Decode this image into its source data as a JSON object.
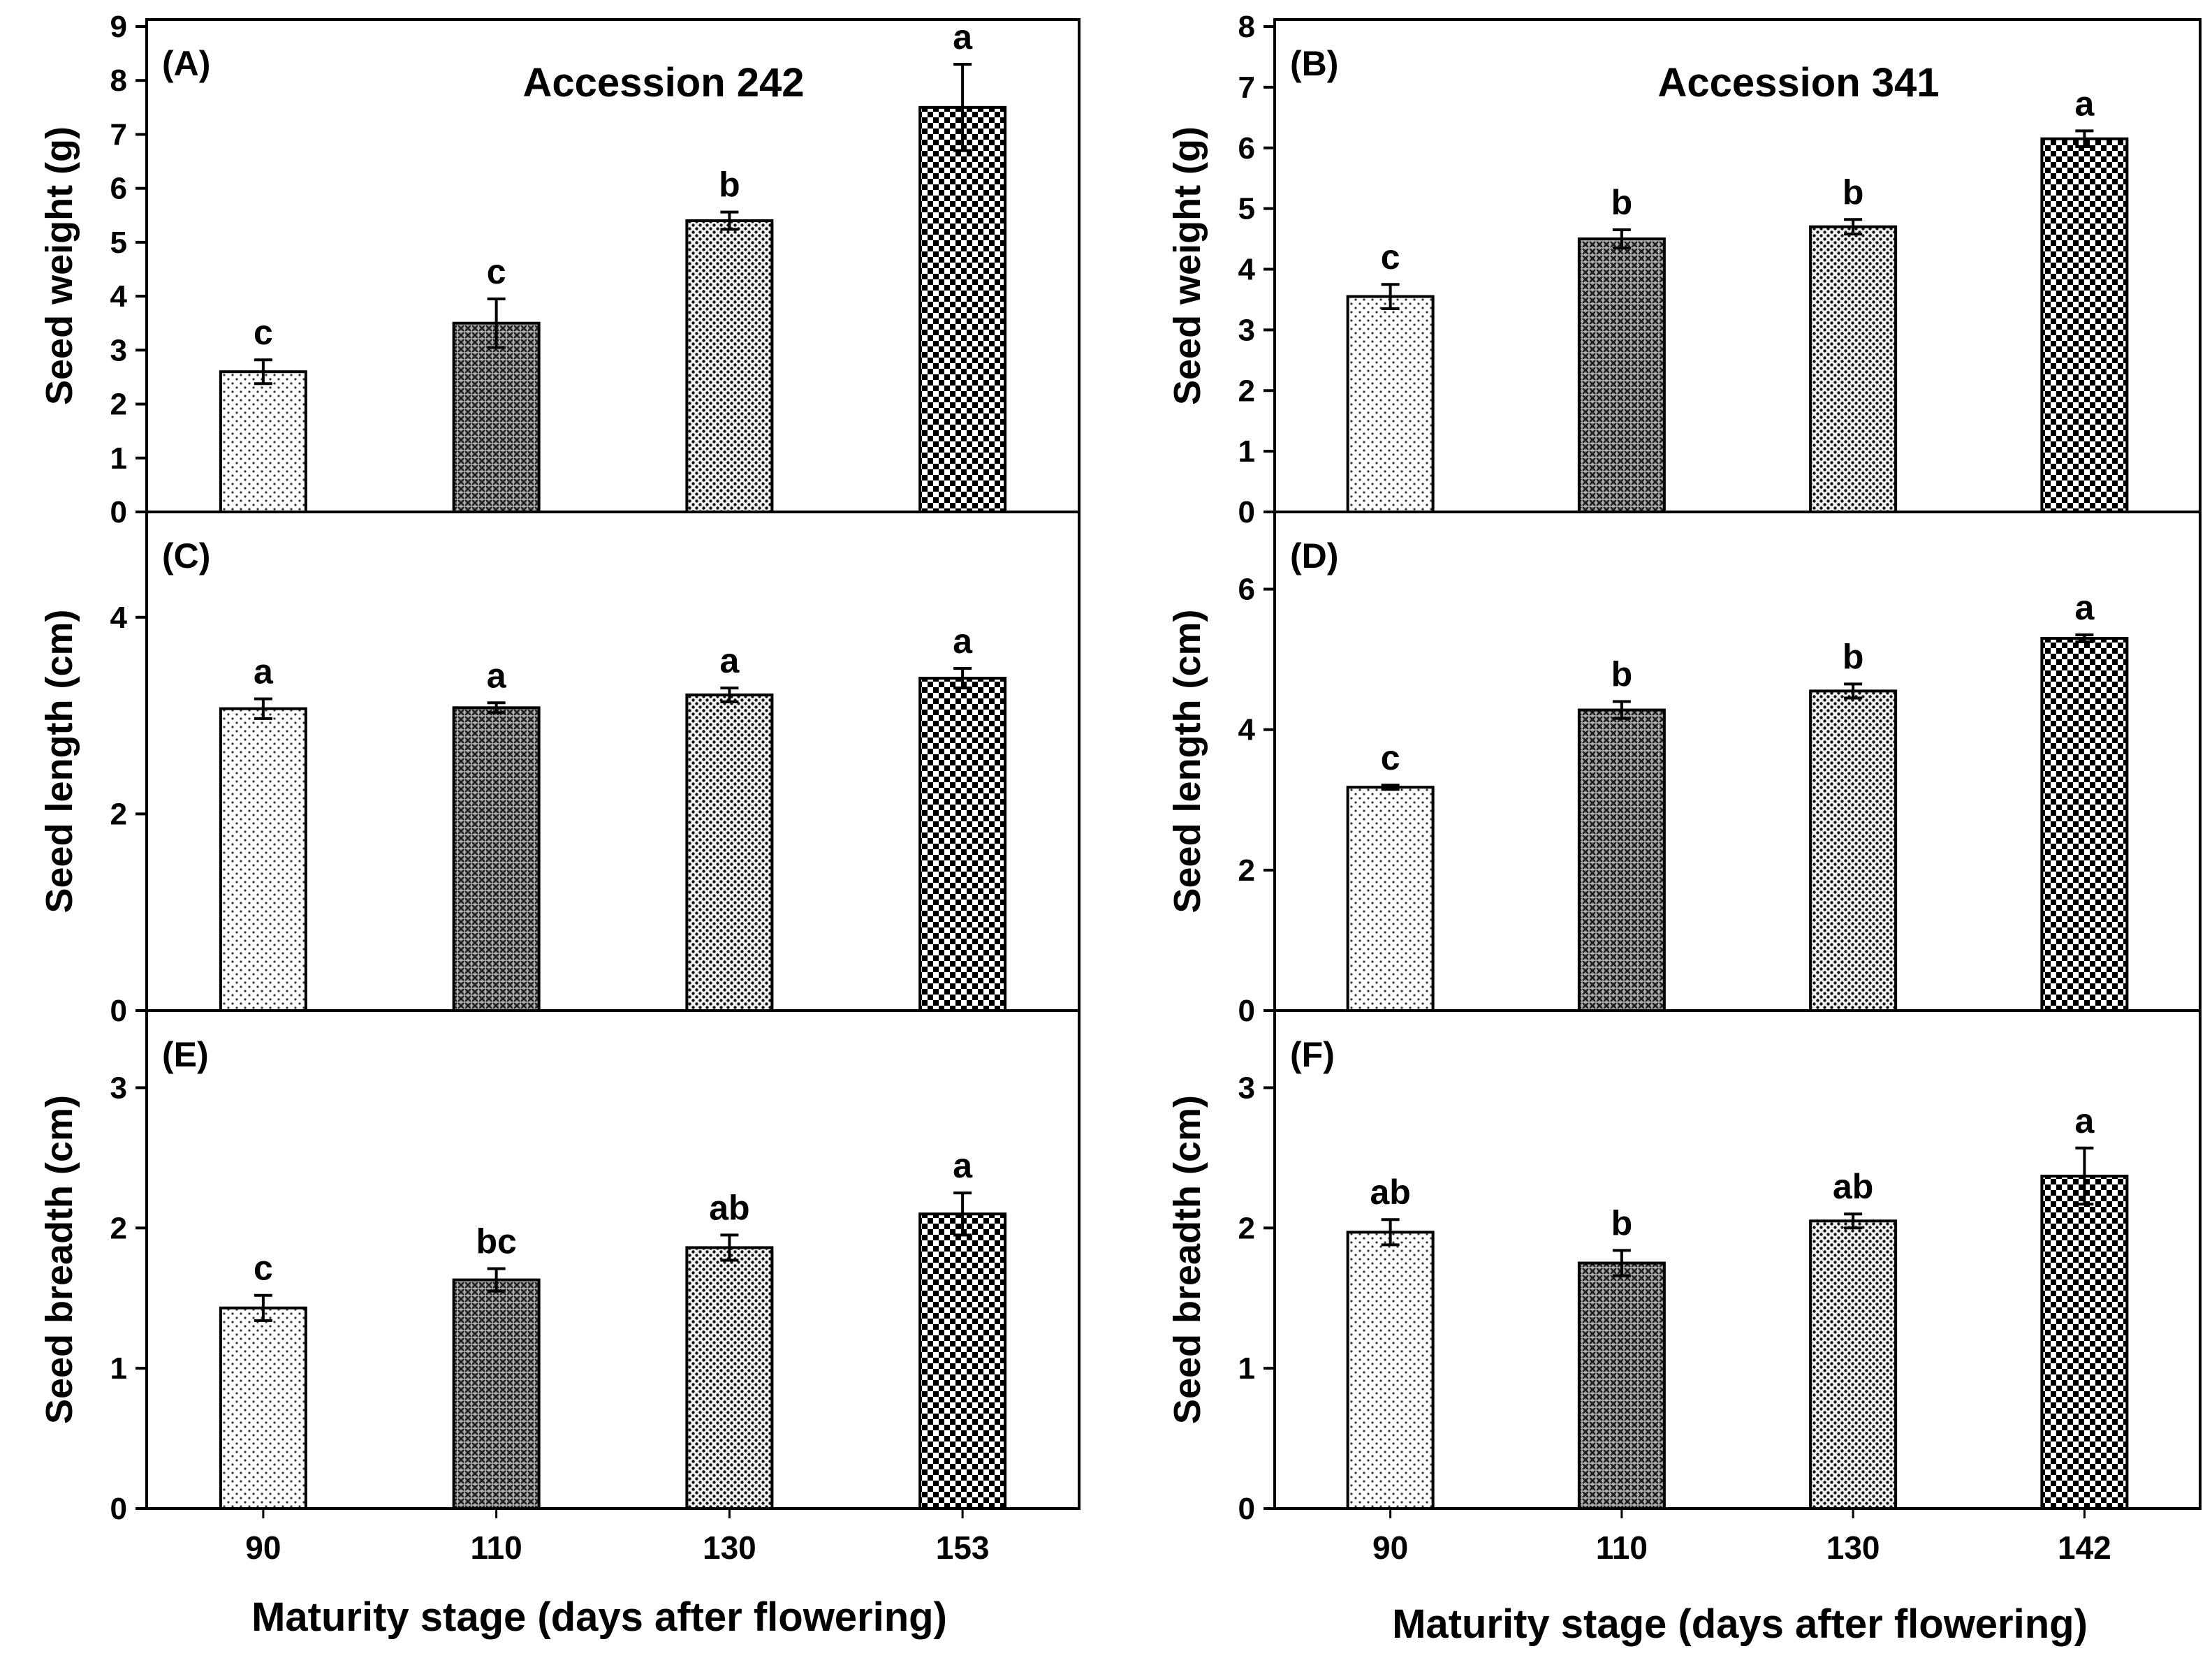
{
  "figure": {
    "xlabel": "Maturity stage (days after flowering)"
  },
  "chart_data": [
    {
      "type": "bar",
      "panel": "(A)",
      "title": "Accession 242",
      "categories": [
        "90",
        "110",
        "130",
        "153"
      ],
      "values": [
        2.6,
        3.5,
        5.4,
        7.5
      ],
      "errors": [
        0.22,
        0.45,
        0.16,
        0.8
      ],
      "letters": [
        "c",
        "c",
        "b",
        "a"
      ],
      "patterns": [
        "dots-light",
        "crosshatch",
        "dots-dense",
        "checker"
      ],
      "xlabel": "Maturity stage (days after flowering)",
      "ylabel": "Seed weight (g)",
      "ylim": [
        0,
        9
      ],
      "yticks": [
        0,
        1,
        2,
        3,
        4,
        5,
        6,
        7,
        8,
        9
      ]
    },
    {
      "type": "bar",
      "panel": "(B)",
      "title": "Accession 341",
      "categories": [
        "90",
        "110",
        "130",
        "142"
      ],
      "values": [
        3.55,
        4.5,
        4.7,
        6.15
      ],
      "errors": [
        0.2,
        0.15,
        0.12,
        0.13
      ],
      "letters": [
        "c",
        "b",
        "b",
        "a"
      ],
      "patterns": [
        "dots-light",
        "crosshatch",
        "dots-dense",
        "checker"
      ],
      "xlabel": "Maturity stage (days after flowering)",
      "ylabel": "Seed weight (g)",
      "ylim": [
        0,
        8
      ],
      "yticks": [
        0,
        1,
        2,
        3,
        4,
        5,
        6,
        7,
        8
      ]
    },
    {
      "type": "bar",
      "panel": "(C)",
      "title": "",
      "categories": [
        "90",
        "110",
        "130",
        "153"
      ],
      "values": [
        3.07,
        3.08,
        3.21,
        3.38
      ],
      "errors": [
        0.1,
        0.05,
        0.07,
        0.1
      ],
      "letters": [
        "a",
        "a",
        "a",
        "a"
      ],
      "patterns": [
        "dots-light",
        "crosshatch",
        "dots-dense",
        "checker"
      ],
      "xlabel": "Maturity stage (days after flowering)",
      "ylabel": "Seed length (cm)",
      "ylim": [
        0,
        5
      ],
      "yticks": [
        0,
        2,
        4
      ]
    },
    {
      "type": "bar",
      "panel": "(D)",
      "title": "",
      "categories": [
        "90",
        "110",
        "130",
        "142"
      ],
      "values": [
        3.18,
        4.28,
        4.55,
        5.3
      ],
      "errors": [
        0.03,
        0.12,
        0.1,
        0.05
      ],
      "letters": [
        "c",
        "b",
        "b",
        "a"
      ],
      "patterns": [
        "dots-light",
        "crosshatch",
        "dots-dense",
        "checker"
      ],
      "xlabel": "Maturity stage (days after flowering)",
      "ylabel": "Seed length (cm)",
      "ylim": [
        0,
        7
      ],
      "yticks": [
        0,
        2,
        4,
        6
      ]
    },
    {
      "type": "bar",
      "panel": "(E)",
      "title": "",
      "categories": [
        "90",
        "110",
        "130",
        "153"
      ],
      "values": [
        1.43,
        1.63,
        1.86,
        2.1
      ],
      "errors": [
        0.09,
        0.08,
        0.09,
        0.15
      ],
      "letters": [
        "c",
        "bc",
        "ab",
        "a"
      ],
      "patterns": [
        "dots-light",
        "crosshatch",
        "dots-dense",
        "checker"
      ],
      "xlabel": "Maturity stage (days after flowering)",
      "ylabel": "Seed breadth (cm)",
      "ylim": [
        0,
        3.5
      ],
      "yticks": [
        0,
        1,
        2,
        3
      ]
    },
    {
      "type": "bar",
      "panel": "(F)",
      "title": "",
      "categories": [
        "90",
        "110",
        "130",
        "142"
      ],
      "values": [
        1.97,
        1.75,
        2.05,
        2.37
      ],
      "errors": [
        0.09,
        0.09,
        0.05,
        0.2
      ],
      "letters": [
        "ab",
        "b",
        "ab",
        "a"
      ],
      "patterns": [
        "dots-light",
        "crosshatch",
        "dots-dense",
        "checker"
      ],
      "xlabel": "Maturity stage (days after flowering)",
      "ylabel": "Seed breadth (cm)",
      "ylim": [
        0,
        3.5
      ],
      "yticks": [
        0,
        1,
        2,
        3
      ]
    }
  ]
}
